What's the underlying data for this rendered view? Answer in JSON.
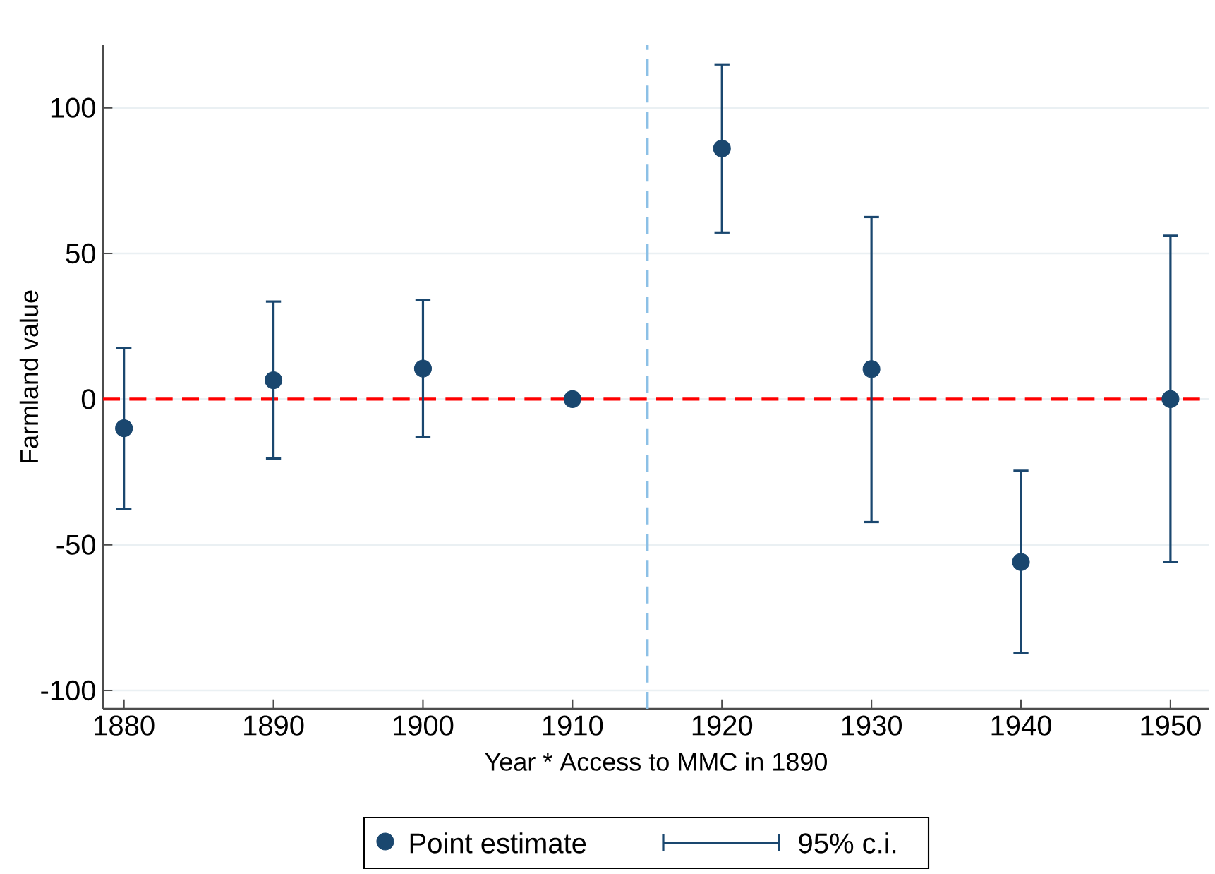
{
  "chart_data": {
    "type": "scatter",
    "xlabel": "Year * Access to MMC in 1890",
    "ylabel": "Farmland value",
    "x": [
      1880,
      1890,
      1900,
      1910,
      1920,
      1930,
      1940,
      1950
    ],
    "series": [
      {
        "name": "Point estimate",
        "color": "#1a476f",
        "values": [
          -10.0,
          6.5,
          10.5,
          0,
          86.0,
          10.3,
          -55.9,
          0
        ],
        "errors": [
          [
            -37.8,
            17.6
          ],
          [
            -20.4,
            33.5
          ],
          [
            -13.1,
            34.1
          ],
          null,
          [
            57.2,
            114.9
          ],
          [
            -42.2,
            62.5
          ],
          [
            -87.1,
            -24.6
          ],
          [
            -55.8,
            56.1
          ]
        ]
      }
    ],
    "annotations": [
      "95% c.i."
    ],
    "marker": "circle",
    "legend": "bottom",
    "grid": "y",
    "xlim": [
      1878.6,
      1952.6
    ],
    "ylim": [
      -106.3,
      121.5
    ],
    "xticks": [
      1880,
      1890,
      1900,
      1910,
      1920,
      1930,
      1940,
      1950
    ],
    "yticks": [
      -100,
      -50,
      0,
      50,
      100
    ],
    "ref_lines": [
      {
        "axis": "y",
        "value": 0,
        "color": "#ff0000",
        "line_style": "dashed"
      },
      {
        "axis": "x",
        "value": 1915,
        "color": "#8cc0e6",
        "line_style": "dashed"
      }
    ]
  }
}
